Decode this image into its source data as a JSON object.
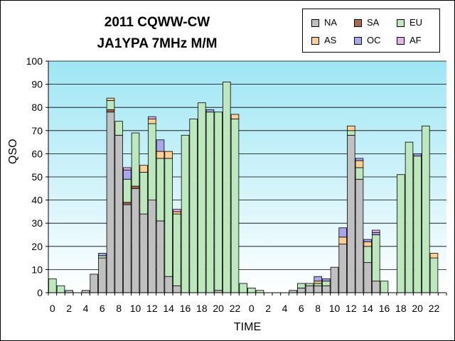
{
  "chart_data": {
    "type": "bar",
    "stacked": true,
    "title": "2011 CQWW-CW",
    "subtitle": "JA1YPA  7MHz  M/M",
    "xlabel": "TIME",
    "ylabel": "QSO",
    "ylim": [
      0,
      100
    ],
    "yticks": [
      "0",
      "10",
      "20",
      "30",
      "40",
      "50",
      "60",
      "70",
      "80",
      "90",
      "100"
    ],
    "grid": true,
    "legend": "top-right",
    "categories": [
      "0",
      "1",
      "2",
      "3",
      "4",
      "5",
      "6",
      "7",
      "8",
      "9",
      "10",
      "11",
      "12",
      "13",
      "14",
      "15",
      "16",
      "17",
      "18",
      "19",
      "20",
      "21",
      "22",
      "23",
      "0",
      "1",
      "2",
      "3",
      "4",
      "5",
      "6",
      "7",
      "8",
      "9",
      "10",
      "11",
      "12",
      "13",
      "14",
      "15",
      "16",
      "17",
      "18",
      "19",
      "20",
      "21",
      "22",
      "23"
    ],
    "xtick_labels": [
      "0",
      "",
      "2",
      "",
      "4",
      "",
      "6",
      "",
      "8",
      "",
      "10",
      "",
      "12",
      "",
      "14",
      "",
      "16",
      "",
      "18",
      "",
      "20",
      "",
      "22",
      "",
      "0",
      "",
      "2",
      "",
      "4",
      "",
      "6",
      "",
      "8",
      "",
      "10",
      "",
      "12",
      "",
      "14",
      "",
      "16",
      "",
      "18",
      "",
      "20",
      "",
      "22",
      ""
    ],
    "series": [
      {
        "name": "NA",
        "color": "#c0c0c0",
        "values": [
          0,
          0,
          1,
          0,
          1,
          8,
          15,
          78,
          68,
          38,
          45,
          34,
          40,
          31,
          7,
          3,
          0,
          0,
          0,
          0,
          1,
          0,
          0,
          0,
          0,
          0,
          0,
          0,
          0,
          1,
          2,
          3,
          3,
          3,
          11,
          21,
          68,
          49,
          13,
          5,
          0,
          0,
          0,
          0,
          0,
          0,
          0,
          0
        ]
      },
      {
        "name": "SA",
        "color": "#a86a4c",
        "values": [
          0,
          0,
          0,
          0,
          0,
          0,
          0,
          1,
          0,
          1,
          1,
          0,
          0,
          0,
          0,
          0,
          0,
          0,
          0,
          0,
          0,
          0,
          0,
          0,
          0,
          0,
          0,
          0,
          0,
          0,
          0,
          0,
          0,
          0,
          0,
          0,
          0,
          0,
          0,
          0,
          0,
          0,
          0,
          0,
          0,
          0,
          0,
          0
        ]
      },
      {
        "name": "EU",
        "color": "#bde8bd",
        "values": [
          6,
          3,
          0,
          0,
          0,
          0,
          1,
          4,
          6,
          10,
          23,
          18,
          33,
          27,
          51,
          31,
          68,
          75,
          82,
          78,
          77,
          91,
          75,
          4,
          2,
          1,
          0,
          0,
          0,
          0,
          2,
          1,
          1,
          2,
          0,
          0,
          2,
          5,
          7,
          20,
          5,
          0,
          51,
          65,
          59,
          72,
          15,
          0
        ]
      },
      {
        "name": "AS",
        "color": "#ffd090",
        "values": [
          0,
          0,
          0,
          0,
          0,
          0,
          0,
          1,
          0,
          0,
          0,
          3,
          2,
          3,
          3,
          1,
          0,
          0,
          0,
          0,
          0,
          0,
          2,
          0,
          0,
          0,
          0,
          0,
          0,
          0,
          0,
          0,
          1,
          0,
          0,
          3,
          2,
          3,
          2,
          0,
          0,
          0,
          0,
          0,
          0,
          0,
          2,
          0
        ]
      },
      {
        "name": "OC",
        "color": "#a9a6ef",
        "values": [
          0,
          0,
          0,
          0,
          0,
          0,
          1,
          0,
          0,
          4,
          0,
          0,
          0,
          5,
          0,
          0,
          0,
          0,
          0,
          1,
          0,
          0,
          0,
          0,
          0,
          0,
          0,
          0,
          0,
          0,
          0,
          0,
          2,
          1,
          0,
          4,
          0,
          1,
          1,
          1,
          0,
          0,
          0,
          0,
          1,
          0,
          0,
          0
        ]
      },
      {
        "name": "AF",
        "color": "#e7b5ea",
        "values": [
          0,
          0,
          0,
          0,
          0,
          0,
          0,
          0,
          0,
          1,
          0,
          0,
          1,
          0,
          0,
          1,
          0,
          0,
          0,
          0,
          0,
          0,
          0,
          0,
          0,
          0,
          0,
          0,
          0,
          0,
          0,
          0,
          0,
          0,
          0,
          0,
          0,
          0,
          0,
          1,
          0,
          0,
          0,
          0,
          0,
          0,
          0,
          0
        ]
      }
    ]
  }
}
